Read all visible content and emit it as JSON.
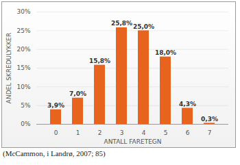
{
  "chart_data": {
    "type": "bar",
    "xlabel": "ANTALL FARETEGN",
    "ylabel": "ANDEL SKREDULYKKER",
    "caption": "(McCammon, i Landrø, 2007; 85)",
    "categories": [
      "0",
      "1",
      "2",
      "3",
      "4",
      "5",
      "6",
      "7"
    ],
    "values": [
      3.9,
      7.0,
      15.8,
      25.8,
      25.0,
      18.0,
      4.3,
      0.3
    ],
    "value_labels": [
      "3,9%",
      "7,0%",
      "15,8%",
      "25,8%",
      "25,0%",
      "18,0%",
      "4,3%",
      "0,3%"
    ],
    "color": "#e8641e",
    "ylim": [
      0,
      30
    ],
    "yticks": [
      {
        "value": 0,
        "label": "0%"
      },
      {
        "value": 5,
        "label": "5%"
      },
      {
        "value": 10,
        "label": "10%"
      },
      {
        "value": 15,
        "label": "15%"
      },
      {
        "value": 20,
        "label": "20%"
      },
      {
        "value": 25,
        "label": "25%"
      },
      {
        "value": 30,
        "label": "30%"
      }
    ],
    "grid": true,
    "data_labels": true
  }
}
